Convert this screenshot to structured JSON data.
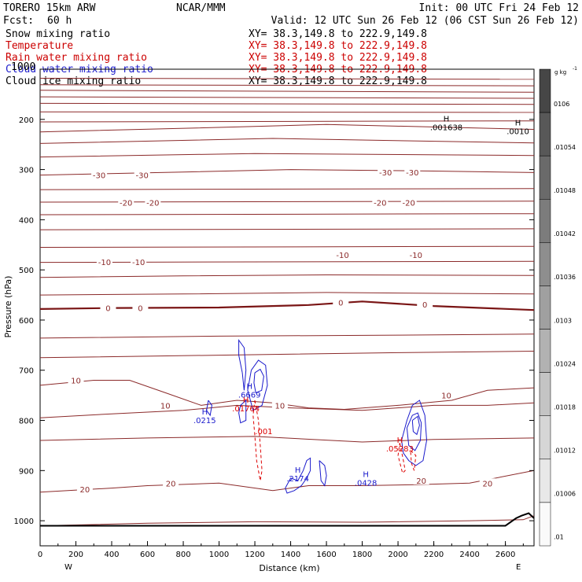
{
  "header": {
    "model": "TORERO   15km ARW",
    "org": "NCAR/MMM",
    "init": "Init: 00 UTC Fri 24 Feb 12",
    "fcst_label": "Fcst:",
    "fcst_value": "60 h",
    "valid": "Valid: 12 UTC Sun 26 Feb 12 (06 CST Sun 26 Feb 12)"
  },
  "fields": [
    {
      "name": "Snow mixing ratio",
      "range": "XY=  38.3,149.8 to 222.9,149.8",
      "color": "#000000"
    },
    {
      "name": "Temperature",
      "range": "XY=  38.3,149.8 to 222.9,149.8",
      "color": "#cc0000"
    },
    {
      "name": "Rain water mixing ratio",
      "range": "XY=  38.3,149.8 to 222.9,149.8",
      "color": "#cc0000"
    },
    {
      "name": "Cloud water mixing ratio",
      "range": "XY=  38.3,149.8 to 222.9,149.8",
      "color": "#2020cc"
    },
    {
      "name": "Cloud ice mixing ratio",
      "range": "XY=  38.3,149.8 to 222.9,149.8",
      "color": "#000000"
    }
  ],
  "overlap_text": "1000",
  "colors": {
    "temperature": "#8b2a2a",
    "zero_isotherm": "#7a1515",
    "rain": "#dd0000",
    "cloud_water": "#1a1acc",
    "ground": "#000000"
  },
  "chart_data": {
    "type": "contour-cross-section",
    "xlabel": "Distance (km)",
    "ylabel": "Pressure (hPa)",
    "xlim": [
      0,
      2760
    ],
    "ylim": [
      1050,
      100
    ],
    "x_ticks": [
      0,
      200,
      400,
      600,
      800,
      1000,
      1200,
      1400,
      1600,
      1800,
      2000,
      2200,
      2400,
      2600
    ],
    "y_ticks": [
      200,
      300,
      400,
      500,
      600,
      700,
      800,
      900,
      1000
    ],
    "x_endpoints": {
      "left": "W",
      "right": "E"
    },
    "colorbar": {
      "unit": "g kg",
      "unit_exp": "-1",
      "labels": [
        "0106",
        ".01054",
        ".01048",
        ".01042",
        ".01036",
        ".0103",
        ".01024",
        ".01018",
        ".01012",
        ".01006",
        ".01"
      ]
    },
    "temperature_contours": [
      {
        "p": [
          [
            0,
            1010
          ],
          [
            600,
            1005
          ],
          [
            1200,
            1002
          ],
          [
            1800,
            1003
          ],
          [
            2400,
            1000
          ],
          [
            2700,
            998
          ],
          [
            2760,
            990
          ]
        ],
        "label": null
      },
      {
        "p": [
          [
            0,
            943
          ],
          [
            400,
            935
          ],
          [
            600,
            930
          ],
          [
            1000,
            925
          ],
          [
            1300,
            940
          ],
          [
            1500,
            930
          ],
          [
            1800,
            930
          ],
          [
            2100,
            928
          ],
          [
            2400,
            925
          ],
          [
            2760,
            900
          ]
        ],
        "label": "20",
        "label_at": [
          [
            250,
            937
          ],
          [
            730,
            925
          ],
          [
            2130,
            920
          ],
          [
            2500,
            925
          ]
        ]
      },
      {
        "p": [
          [
            0,
            840
          ],
          [
            600,
            835
          ],
          [
            1200,
            832
          ],
          [
            1800,
            843
          ],
          [
            2200,
            838
          ],
          [
            2760,
            835
          ]
        ],
        "label": null
      },
      {
        "p": [
          [
            0,
            795
          ],
          [
            400,
            787
          ],
          [
            800,
            780
          ],
          [
            1100,
            770
          ],
          [
            1400,
            775
          ],
          [
            1800,
            780
          ],
          [
            2200,
            770
          ],
          [
            2500,
            770
          ],
          [
            2760,
            765
          ]
        ],
        "label": null
      },
      {
        "p": [
          [
            0,
            730
          ],
          [
            300,
            720
          ],
          [
            500,
            720
          ],
          [
            700,
            745
          ],
          [
            900,
            770
          ],
          [
            1100,
            760
          ],
          [
            1300,
            765
          ],
          [
            1500,
            775
          ],
          [
            1700,
            778
          ],
          [
            2000,
            770
          ],
          [
            2300,
            760
          ],
          [
            2500,
            740
          ],
          [
            2760,
            735
          ]
        ],
        "label": "10",
        "label_at": [
          [
            200,
            720
          ],
          [
            700,
            770
          ],
          [
            1340,
            770
          ],
          [
            2270,
            750
          ]
        ]
      },
      {
        "p": [
          [
            0,
            675
          ],
          [
            1000,
            670
          ],
          [
            2000,
            665
          ],
          [
            2760,
            662
          ]
        ],
        "label": null
      },
      {
        "p": [
          [
            0,
            636
          ],
          [
            1000,
            632
          ],
          [
            2000,
            630
          ],
          [
            2760,
            628
          ]
        ],
        "label": null
      },
      {
        "p": [
          [
            0,
            578
          ],
          [
            400,
            576
          ],
          [
            1000,
            575
          ],
          [
            1500,
            570
          ],
          [
            1800,
            563
          ],
          [
            2200,
            572
          ],
          [
            2760,
            580
          ]
        ],
        "label": "0",
        "label_at": [
          [
            380,
            576
          ],
          [
            560,
            576
          ],
          [
            1680,
            565
          ],
          [
            2150,
            569
          ]
        ],
        "zero": true
      },
      {
        "p": [
          [
            0,
            550
          ],
          [
            800,
            548
          ],
          [
            1600,
            545
          ],
          [
            2760,
            548
          ]
        ],
        "label": null
      },
      {
        "p": [
          [
            0,
            515
          ],
          [
            800,
            512
          ],
          [
            1600,
            510
          ],
          [
            2760,
            511
          ]
        ],
        "label": null
      },
      {
        "p": [
          [
            0,
            485
          ],
          [
            2760,
            483
          ]
        ],
        "label": "-10",
        "label_at": [
          [
            360,
            484
          ],
          [
            550,
            484
          ],
          [
            1690,
            470
          ],
          [
            2100,
            470
          ]
        ]
      },
      {
        "p": [
          [
            0,
            455
          ],
          [
            2760,
            453
          ]
        ],
        "label": null
      },
      {
        "p": [
          [
            0,
            420
          ],
          [
            2760,
            418
          ]
        ],
        "label": null
      },
      {
        "p": [
          [
            0,
            390
          ],
          [
            2760,
            388
          ]
        ],
        "label": null
      },
      {
        "p": [
          [
            0,
            365
          ],
          [
            2760,
            363
          ]
        ],
        "label": "-20",
        "label_at": [
          [
            480,
            366
          ],
          [
            630,
            366
          ],
          [
            1900,
            366
          ],
          [
            2060,
            366
          ]
        ]
      },
      {
        "p": [
          [
            0,
            340
          ],
          [
            2760,
            338
          ]
        ],
        "label": null
      },
      {
        "p": [
          [
            0,
            311
          ],
          [
            800,
            305
          ],
          [
            1400,
            300
          ],
          [
            2200,
            303
          ],
          [
            2760,
            306
          ]
        ],
        "label": "-30",
        "label_at": [
          [
            330,
            311
          ],
          [
            570,
            311
          ],
          [
            1930,
            305
          ],
          [
            2080,
            305
          ]
        ]
      },
      {
        "p": [
          [
            0,
            275
          ],
          [
            1200,
            268
          ],
          [
            2760,
            272
          ]
        ],
        "label": null
      },
      {
        "p": [
          [
            0,
            248
          ],
          [
            1300,
            238
          ],
          [
            2760,
            247
          ]
        ],
        "label": null
      },
      {
        "p": [
          [
            0,
            225
          ],
          [
            1100,
            215
          ],
          [
            1600,
            210
          ],
          [
            2760,
            220
          ]
        ],
        "label": null
      },
      {
        "p": [
          [
            0,
            205
          ],
          [
            2760,
            203
          ]
        ],
        "label": null
      },
      {
        "p": [
          [
            0,
            185
          ],
          [
            2760,
            186
          ]
        ],
        "label": null
      },
      {
        "p": [
          [
            0,
            168
          ],
          [
            2760,
            170
          ]
        ],
        "label": null
      },
      {
        "p": [
          [
            0,
            155
          ],
          [
            2760,
            158
          ]
        ],
        "label": null
      },
      {
        "p": [
          [
            0,
            142
          ],
          [
            2760,
            146
          ]
        ],
        "label": null
      },
      {
        "p": [
          [
            0,
            131
          ],
          [
            2760,
            133
          ]
        ],
        "label": null
      },
      {
        "p": [
          [
            0,
            118
          ],
          [
            2760,
            120
          ]
        ],
        "label": null
      }
    ],
    "maxima": [
      {
        "x": 2270,
        "p": 204,
        "mark": "H",
        "label": ".001638",
        "color": "#000000"
      },
      {
        "x": 2670,
        "p": 212,
        "mark": "H",
        "label": ".0010",
        "color": "#000000"
      },
      {
        "x": 1170,
        "p": 737,
        "mark": "H",
        "label": ".6669",
        "color": "#1a1acc"
      },
      {
        "x": 1150,
        "p": 765,
        "mark": "H",
        "label": ".01764",
        "color": "#dd0000"
      },
      {
        "x": 1250,
        "p": 810,
        "mark": "",
        "label": ".001",
        "color": "#dd0000"
      },
      {
        "x": 920,
        "p": 788,
        "mark": "H",
        "label": ".0215",
        "color": "#1a1acc"
      },
      {
        "x": 1440,
        "p": 904,
        "mark": "H",
        "label": ".2174",
        "color": "#1a1acc"
      },
      {
        "x": 1820,
        "p": 913,
        "mark": "H",
        "label": ".0428",
        "color": "#1a1acc"
      },
      {
        "x": 2010,
        "p": 845,
        "mark": "H",
        "label": ".05283",
        "color": "#dd0000"
      }
    ],
    "cloud_water_contours": [
      {
        "p": [
          [
            1130,
            705
          ],
          [
            1110,
            670
          ],
          [
            1110,
            640
          ],
          [
            1140,
            655
          ],
          [
            1150,
            700
          ],
          [
            1140,
            740
          ],
          [
            1130,
            705
          ]
        ]
      },
      {
        "p": [
          [
            1180,
            700
          ],
          [
            1220,
            680
          ],
          [
            1260,
            690
          ],
          [
            1270,
            730
          ],
          [
            1240,
            770
          ],
          [
            1190,
            780
          ],
          [
            1160,
            740
          ],
          [
            1180,
            700
          ]
        ]
      },
      {
        "p": [
          [
            1200,
            705
          ],
          [
            1230,
            698
          ],
          [
            1250,
            712
          ],
          [
            1238,
            740
          ],
          [
            1205,
            745
          ],
          [
            1195,
            725
          ],
          [
            1200,
            705
          ]
        ]
      },
      {
        "p": [
          [
            1120,
            770
          ],
          [
            1150,
            760
          ],
          [
            1150,
            800
          ],
          [
            1120,
            805
          ],
          [
            1110,
            785
          ],
          [
            1120,
            770
          ]
        ]
      },
      {
        "p": [
          [
            940,
            760
          ],
          [
            960,
            770
          ],
          [
            950,
            790
          ],
          [
            930,
            780
          ],
          [
            940,
            760
          ]
        ]
      },
      {
        "p": [
          [
            1370,
            935
          ],
          [
            1400,
            915
          ],
          [
            1440,
            920
          ],
          [
            1470,
            900
          ],
          [
            1490,
            880
          ],
          [
            1510,
            875
          ],
          [
            1510,
            900
          ],
          [
            1490,
            915
          ],
          [
            1460,
            930
          ],
          [
            1420,
            940
          ],
          [
            1380,
            945
          ],
          [
            1370,
            935
          ]
        ]
      },
      {
        "p": [
          [
            1560,
            880
          ],
          [
            1590,
            890
          ],
          [
            1600,
            910
          ],
          [
            1590,
            930
          ],
          [
            1570,
            920
          ],
          [
            1560,
            880
          ]
        ]
      },
      {
        "p": [
          [
            2020,
            840
          ],
          [
            2050,
            800
          ],
          [
            2080,
            770
          ],
          [
            2120,
            760
          ],
          [
            2150,
            790
          ],
          [
            2160,
            840
          ],
          [
            2140,
            880
          ],
          [
            2100,
            890
          ],
          [
            2060,
            880
          ],
          [
            2030,
            865
          ],
          [
            2020,
            840
          ]
        ]
      },
      {
        "p": [
          [
            2050,
            815
          ],
          [
            2080,
            790
          ],
          [
            2110,
            785
          ],
          [
            2130,
            805
          ],
          [
            2125,
            840
          ],
          [
            2095,
            860
          ],
          [
            2060,
            850
          ],
          [
            2050,
            815
          ]
        ]
      },
      {
        "p": [
          [
            2080,
            800
          ],
          [
            2110,
            792
          ],
          [
            2120,
            810
          ],
          [
            2105,
            828
          ],
          [
            2085,
            822
          ],
          [
            2080,
            800
          ]
        ]
      }
    ],
    "rain_contours": [
      {
        "p": [
          [
            1200,
            760
          ],
          [
            1220,
            800
          ],
          [
            1230,
            850
          ],
          [
            1240,
            900
          ],
          [
            1230,
            920
          ],
          [
            1210,
            880
          ],
          [
            1200,
            830
          ],
          [
            1190,
            790
          ],
          [
            1200,
            760
          ]
        ]
      },
      {
        "p": [
          [
            2010,
            845
          ],
          [
            2030,
            880
          ],
          [
            2040,
            900
          ],
          [
            2025,
            905
          ],
          [
            2000,
            870
          ],
          [
            2010,
            845
          ]
        ]
      },
      {
        "p": [
          [
            2070,
            860
          ],
          [
            2100,
            870
          ],
          [
            2090,
            900
          ],
          [
            2075,
            885
          ],
          [
            2070,
            860
          ]
        ]
      }
    ],
    "terrain": [
      [
        0,
        1010
      ],
      [
        2600,
        1010
      ],
      [
        2660,
        995
      ],
      [
        2690,
        990
      ],
      [
        2730,
        985
      ],
      [
        2760,
        995
      ]
    ]
  }
}
